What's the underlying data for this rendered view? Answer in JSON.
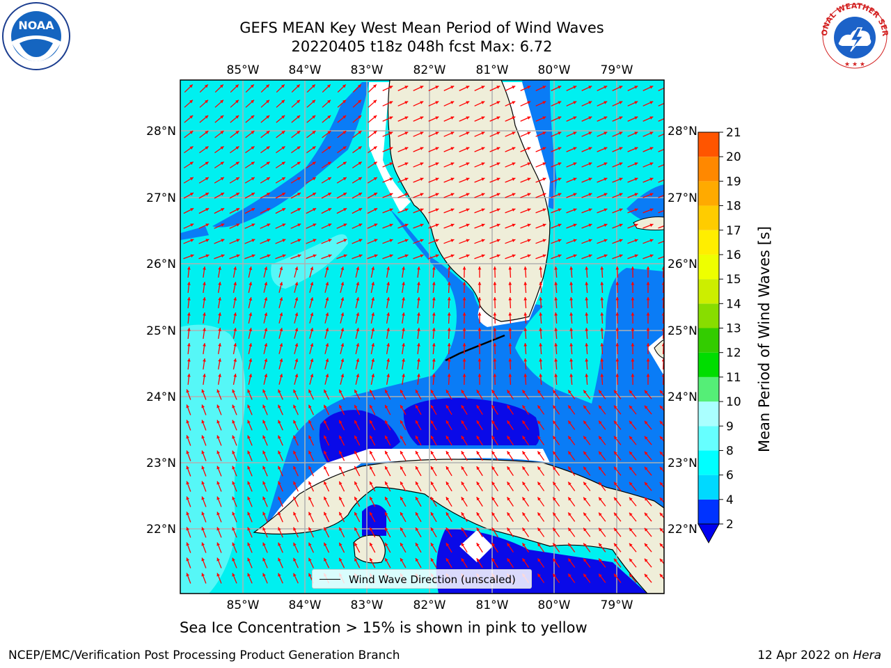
{
  "header": {
    "title_line1": "GEFS MEAN Key West Mean Period of Wind Waves",
    "title_line2": "20220405 t18z 048h fcst   Max: 6.72"
  },
  "logos": {
    "noaa": "NOAA",
    "nws_ring": "NATIONAL WEATHER SERVICE"
  },
  "map": {
    "lon_labels": [
      "85°W",
      "84°W",
      "83°W",
      "82°W",
      "81°W",
      "80°W",
      "79°W"
    ],
    "lat_labels": [
      "28°N",
      "27°N",
      "26°N",
      "25°N",
      "24°N",
      "23°N",
      "22°N"
    ],
    "legend_label": "Wind Wave Direction (unscaled)",
    "colors": {
      "land": "#efeed9",
      "band_2_4": "#0a0ae8",
      "band_4_6": "#0a7cf6",
      "band_6_8": "#00f0f0",
      "band_8_10": "#56f7f7",
      "arrow": "#ff0000"
    }
  },
  "colorbar": {
    "title": "Mean Period of Wind Waves [s]",
    "ticks": [
      "2",
      "4",
      "6",
      "8",
      "9",
      "10",
      "11",
      "12",
      "13",
      "14",
      "15",
      "16",
      "17",
      "18",
      "19",
      "20",
      "21"
    ],
    "colors": [
      "#0033ff",
      "#00d9ff",
      "#00ffff",
      "#66ffff",
      "#aaffff",
      "#55ee77",
      "#00dd00",
      "#33cc00",
      "#88dd00",
      "#ccee00",
      "#eeff00",
      "#ffee00",
      "#ffcc00",
      "#ffaa00",
      "#ff8800",
      "#ff5500",
      "#ff2200",
      "#ff0000"
    ],
    "underflow_color": "#0000ee"
  },
  "notes": {
    "ice": "Sea Ice Concentration > 15% is shown in pink to yellow"
  },
  "footer": {
    "left": "NCEP/EMC/Verification Post Processing Product Generation Branch",
    "right_date": "12 Apr 2022 on",
    "right_host": "Hera"
  }
}
